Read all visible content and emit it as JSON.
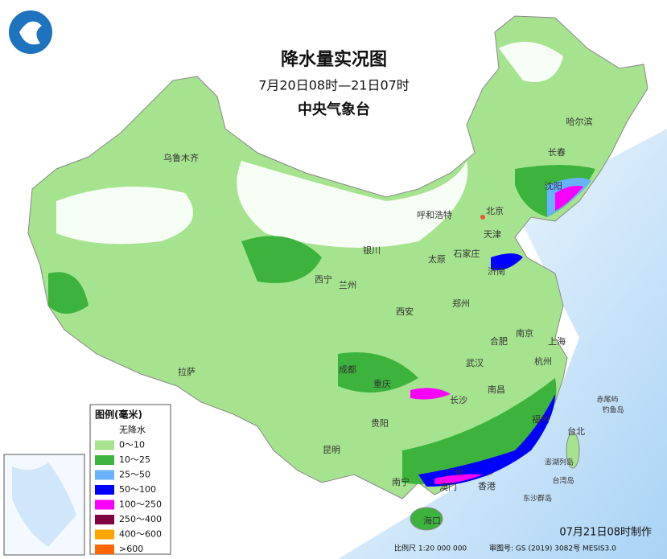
{
  "header": {
    "title": "降水量实况图",
    "period": "7月20日08时—21日07时",
    "issuer": "中央气象台"
  },
  "cities": [
    "乌鲁木齐",
    "哈尔滨",
    "长春",
    "沈阳",
    "北京",
    "天津",
    "呼和浩特",
    "石家庄",
    "太原",
    "济南",
    "银川",
    "西宁",
    "兰州",
    "郑州",
    "西安",
    "合肥",
    "南京",
    "上海",
    "武汉",
    "杭州",
    "成都",
    "重庆",
    "长沙",
    "南昌",
    "拉萨",
    "贵阳",
    "福州",
    "台北",
    "昆明",
    "南宁",
    "广州",
    "澳门",
    "香港",
    "海口"
  ],
  "islands": [
    "赤尾屿",
    "钓鱼岛",
    "澎湖列岛",
    "台湾岛",
    "东沙群岛"
  ],
  "legend": {
    "title": "图例(毫米)",
    "items": [
      {
        "label": "无降水",
        "color": "#ffffff"
      },
      {
        "label": "0～10",
        "color": "#a6e38f"
      },
      {
        "label": "10～25",
        "color": "#3cb33c"
      },
      {
        "label": "25～50",
        "color": "#66b2ff"
      },
      {
        "label": "50～100",
        "color": "#0000fe"
      },
      {
        "label": "100～250",
        "color": "#fa00fa"
      },
      {
        "label": "250～400",
        "color": "#800040"
      },
      {
        "label": "400～600",
        "color": "#ffa500"
      },
      {
        "label": ">600",
        "color": "#ff6600"
      }
    ]
  },
  "footer": {
    "made": "07月21日08时制作",
    "scale": "比例尺 1:20 000 000",
    "approval": "审图号: GS (2019) 3082号 MESIS3.0"
  }
}
